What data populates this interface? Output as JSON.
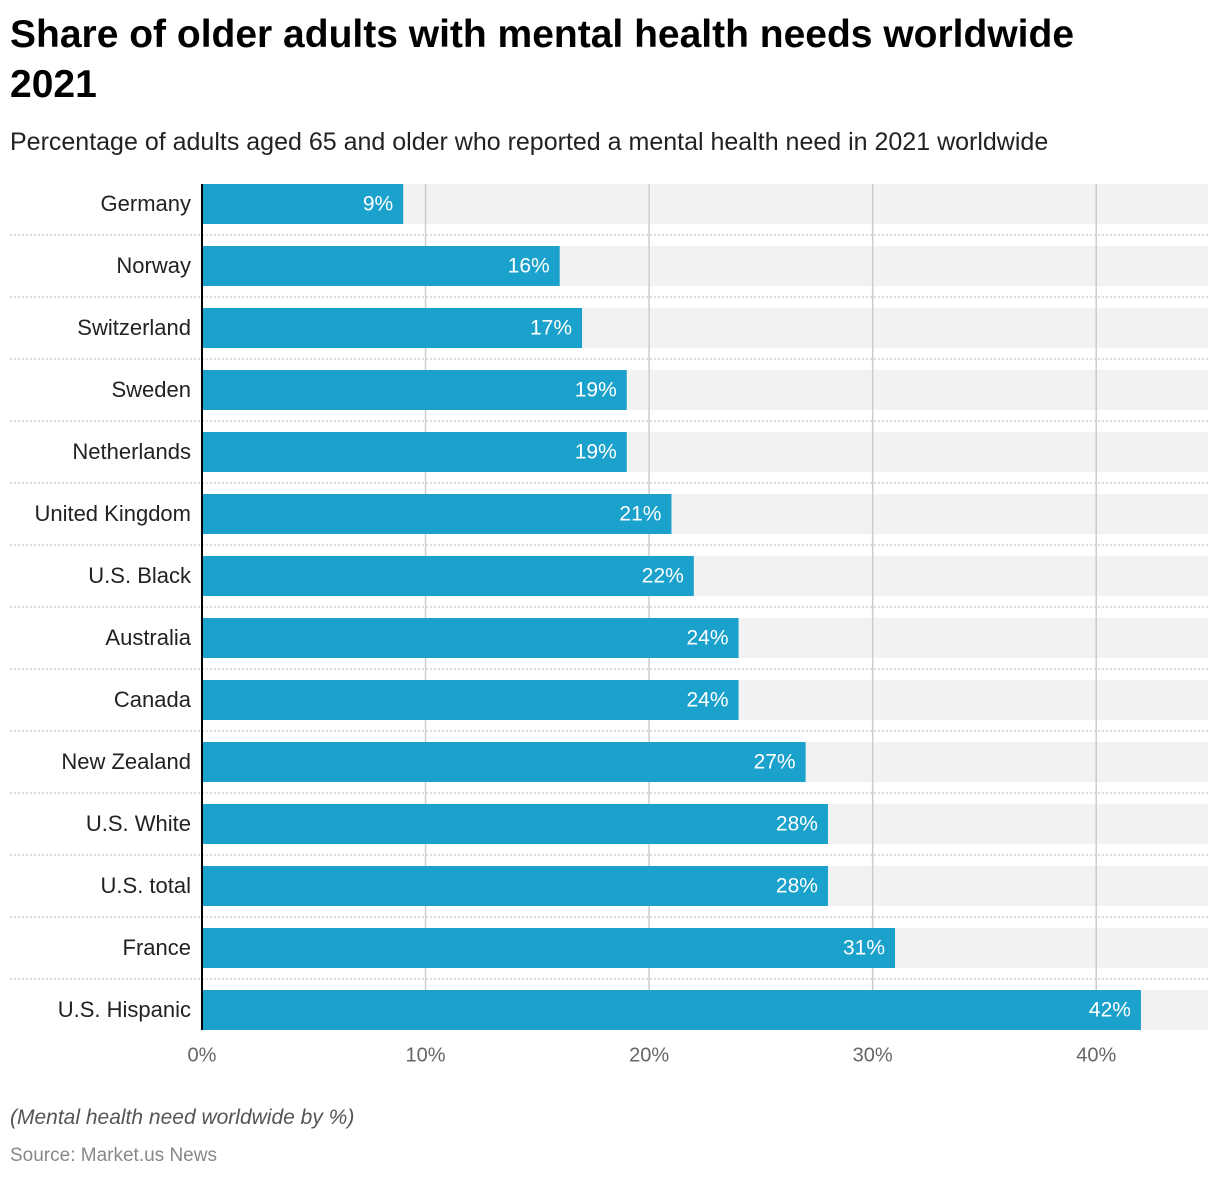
{
  "chart_data": {
    "type": "bar",
    "orientation": "horizontal",
    "title": "Share of older adults with mental health needs worldwide 2021",
    "subtitle": "Percentage of adults aged 65 and older who reported a mental health need in 2021 worldwide",
    "note": "(Mental health need worldwide by %)",
    "source": "Source: Market.us News",
    "categories": [
      "Germany",
      "Norway",
      "Switzerland",
      "Sweden",
      "Netherlands",
      "United Kingdom",
      "U.S. Black",
      "Australia",
      "Canada",
      "New Zealand",
      "U.S. White",
      "U.S. total",
      "France",
      "U.S. Hispanic"
    ],
    "values": [
      9,
      16,
      17,
      19,
      19,
      21,
      22,
      24,
      24,
      27,
      28,
      28,
      31,
      42
    ],
    "value_labels": [
      "9%",
      "16%",
      "17%",
      "19%",
      "19%",
      "21%",
      "22%",
      "24%",
      "24%",
      "27%",
      "28%",
      "28%",
      "31%",
      "42%"
    ],
    "color": "#1aa1cc",
    "xlim": [
      0,
      45
    ],
    "xticks": [
      {
        "value": 0,
        "label": "0%"
      },
      {
        "value": 10,
        "label": "10%"
      },
      {
        "value": 20,
        "label": "20%"
      },
      {
        "value": 30,
        "label": "30%"
      },
      {
        "value": 40,
        "label": "40%"
      }
    ],
    "grid": true
  }
}
